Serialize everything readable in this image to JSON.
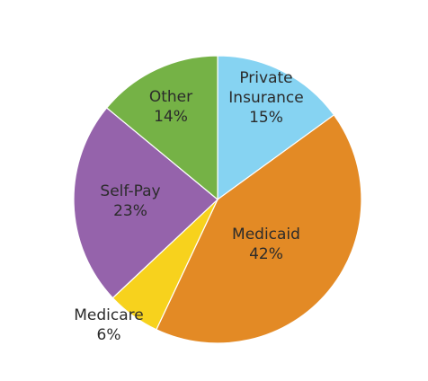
{
  "chart_data": {
    "type": "pie",
    "title": "",
    "slices": [
      {
        "label_lines": [
          "Private",
          "Insurance"
        ],
        "value": 15,
        "percent_label": "15%",
        "color": "#86d3f2"
      },
      {
        "label_lines": [
          "Medicaid"
        ],
        "value": 42,
        "percent_label": "42%",
        "color": "#e38a25"
      },
      {
        "label_lines": [
          "Medicare"
        ],
        "value": 6,
        "percent_label": "6%",
        "color": "#f7d21d"
      },
      {
        "label_lines": [
          "Self-Pay"
        ],
        "value": 23,
        "percent_label": "23%",
        "color": "#9563ab"
      },
      {
        "label_lines": [
          "Other"
        ],
        "value": 14,
        "percent_label": "14%",
        "color": "#75b246"
      }
    ],
    "start_position": "12 o'clock",
    "direction": "clockwise",
    "legend": "none",
    "labels": "inside slices, outside for Medicare"
  }
}
